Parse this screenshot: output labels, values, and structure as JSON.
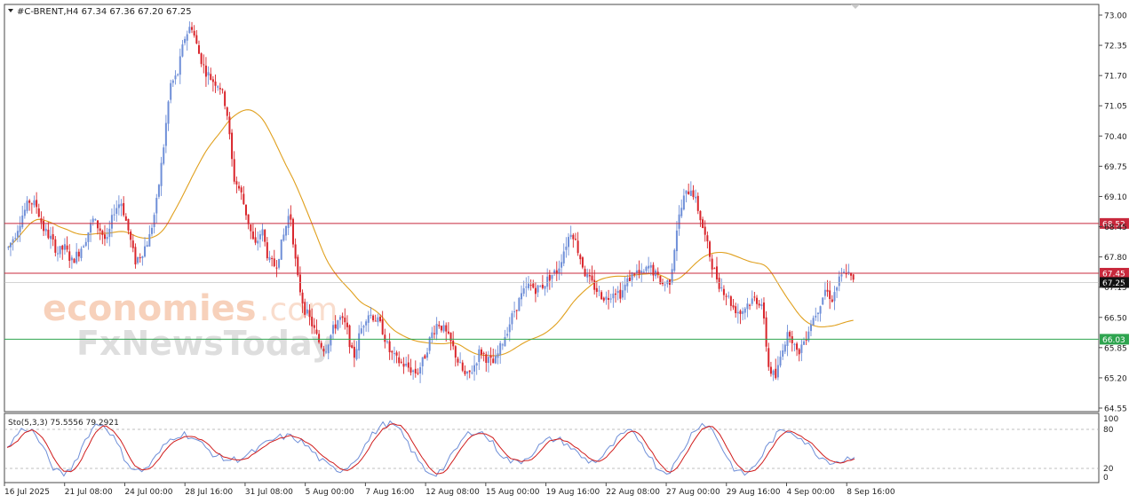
{
  "header": {
    "symbol_info": "#C-BRENT,H4  67.34 67.36 67.20 67.25"
  },
  "watermark": {
    "brand1": "economies",
    "brand1_suffix": ".com",
    "brand2": "FxNewsToday"
  },
  "oscillator": {
    "label": "Sto(5,3,3) 75.5556 79.2921",
    "levels": [
      20,
      80
    ],
    "scale_labels": [
      "100",
      "80",
      "20",
      "0"
    ]
  },
  "colors": {
    "bull": "#6f8fd8",
    "bear": "#d9252b",
    "ma": "#e0a01e",
    "resistance": "#c8283c",
    "support": "#2ea44f",
    "current": "#1a1a1a",
    "stoch_main": "#6f8fd8",
    "stoch_signal": "#d01c1c"
  },
  "chart_data": {
    "type": "candlestick",
    "price_axis": {
      "min": 64.55,
      "max": 73.0,
      "ticks": [
        "73.00",
        "72.35",
        "71.70",
        "71.05",
        "70.40",
        "69.75",
        "69.10",
        "68.45",
        "67.80",
        "67.15",
        "66.50",
        "65.85",
        "65.20",
        "64.55"
      ]
    },
    "time_labels": [
      "16 Jul 2025",
      "21 Jul 08:00",
      "24 Jul 00:00",
      "28 Jul 16:00",
      "31 Jul 08:00",
      "5 Aug 00:00",
      "7 Aug 16:00",
      "12 Aug 08:00",
      "15 Aug 00:00",
      "19 Aug 16:00",
      "22 Aug 08:00",
      "27 Aug 00:00",
      "29 Aug 16:00",
      "4 Sep 00:00",
      "8 Sep 16:00"
    ],
    "levels": [
      {
        "label": "68.52",
        "value": 68.52,
        "kind": "resistance"
      },
      {
        "label": "67.45",
        "value": 67.45,
        "kind": "resistance"
      },
      {
        "label": "67.25",
        "value": 67.25,
        "kind": "current"
      },
      {
        "label": "66.03",
        "value": 66.03,
        "kind": "support"
      }
    ],
    "close_path": [
      68.0,
      68.3,
      68.7,
      69.0,
      68.9,
      68.4,
      68.2,
      67.9,
      68.0,
      67.7,
      67.9,
      68.2,
      68.6,
      68.4,
      68.1,
      68.8,
      69.0,
      68.4,
      67.7,
      67.9,
      68.2,
      68.9,
      70.1,
      71.5,
      71.7,
      72.5,
      72.8,
      72.2,
      71.8,
      71.6,
      71.5,
      71.0,
      69.5,
      69.2,
      68.6,
      68.0,
      68.4,
      67.7,
      67.6,
      68.2,
      68.8,
      67.4,
      66.7,
      66.4,
      66.0,
      65.8,
      66.2,
      66.5,
      66.3,
      65.6,
      66.2,
      66.6,
      66.5,
      66.3,
      65.8,
      65.6,
      65.5,
      65.4,
      65.3,
      65.6,
      66.1,
      66.4,
      66.2,
      65.9,
      65.5,
      65.2,
      65.4,
      65.8,
      65.6,
      65.5,
      65.9,
      66.3,
      66.7,
      67.0,
      67.2,
      67.1,
      67.2,
      67.4,
      67.5,
      68.0,
      68.4,
      67.9,
      67.4,
      67.2,
      67.0,
      66.9,
      67.1,
      67.0,
      67.3,
      67.5,
      67.4,
      67.6,
      67.4,
      67.2,
      67.3,
      68.5,
      69.1,
      69.3,
      68.8,
      68.2,
      67.6,
      67.2,
      67.0,
      66.7,
      66.6,
      66.8,
      66.9,
      66.8,
      65.4,
      65.2,
      65.9,
      66.2,
      65.7,
      66.0,
      66.4,
      66.7,
      67.1,
      66.9,
      67.3,
      67.5,
      67.25
    ]
  }
}
